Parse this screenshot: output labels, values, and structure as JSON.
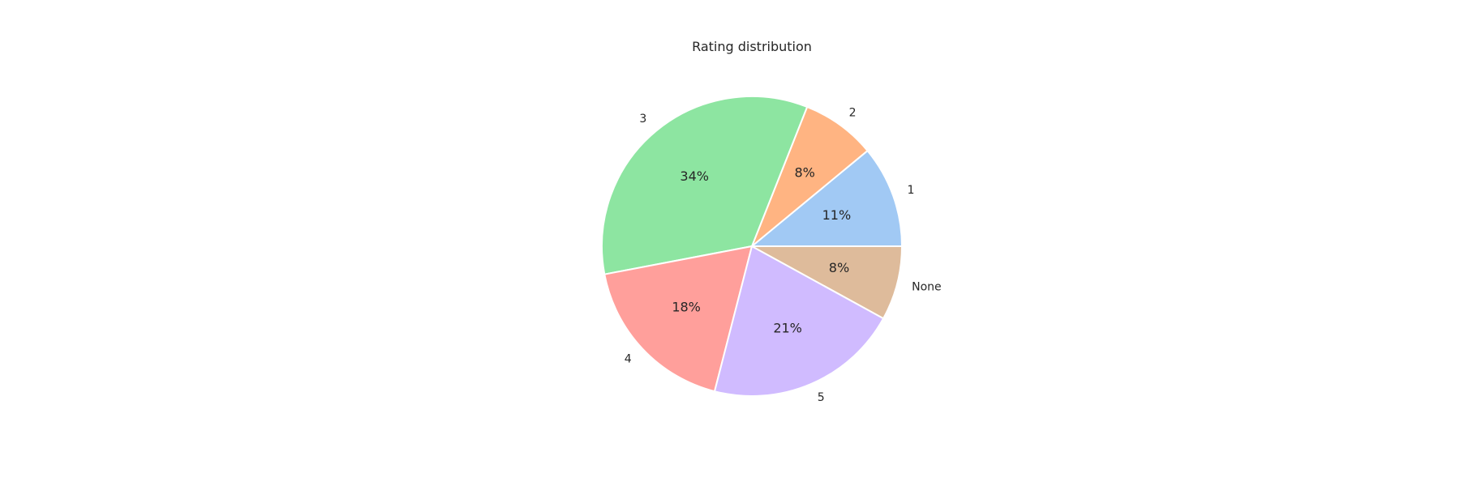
{
  "chart_data": {
    "type": "pie",
    "title": "Rating distribution",
    "categories": [
      "1",
      "2",
      "3",
      "4",
      "5",
      "None"
    ],
    "values": [
      11,
      8,
      34,
      18,
      21,
      8
    ],
    "percent_labels": [
      "11%",
      "8%",
      "34%",
      "18%",
      "21%",
      "8%"
    ],
    "colors": [
      "#a1c9f4",
      "#ffb482",
      "#8de5a1",
      "#ff9f9b",
      "#d0bbff",
      "#debb9b"
    ],
    "start_angle_deg": 0,
    "direction": "counterclockwise"
  }
}
